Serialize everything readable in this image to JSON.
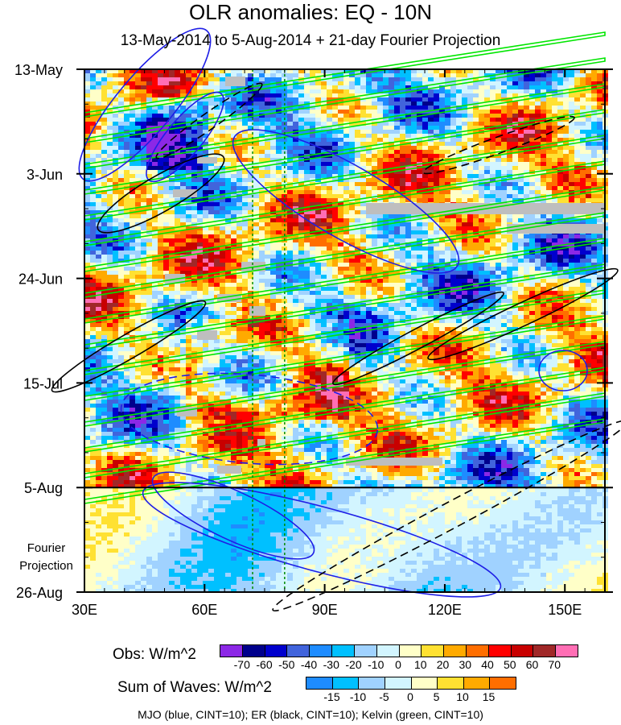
{
  "chart_data": {
    "type": "heatmap",
    "title": "OLR anomalies: EQ - 10N",
    "subtitle": "13-May-2014 to 5-Aug-2014 + 21-day Fourier Projection",
    "x_ticks": [
      "30E",
      "60E",
      "90E",
      "120E",
      "150E"
    ],
    "x_tick_values": [
      30,
      60,
      90,
      120,
      150
    ],
    "xlim": [
      30,
      160
    ],
    "y_ticks": [
      "13-May",
      "3-Jun",
      "24-Jun",
      "15-Jul",
      "5-Aug",
      "26-Aug"
    ],
    "y_tick_days": [
      0,
      21,
      42,
      63,
      84,
      105
    ],
    "ylim_days": [
      0,
      105
    ],
    "projection_label": [
      "Fourier",
      "Projection"
    ],
    "projection_start_day": 84,
    "reference_lines_lon": [
      72,
      80
    ],
    "obs_colorbar": {
      "label": "Obs: W/m^2",
      "levels": [
        -70,
        -60,
        -50,
        -40,
        -30,
        -20,
        -10,
        0,
        10,
        20,
        30,
        40,
        50,
        60,
        70
      ],
      "colors": [
        "#8c28e6",
        "#00008c",
        "#0000cd",
        "#4164dc",
        "#1e8cff",
        "#00c0ff",
        "#a0d2ff",
        "#d2f5ff",
        "#ffffc8",
        "#ffe132",
        "#ffaa00",
        "#ff6e00",
        "#ff0000",
        "#c80000",
        "#a02828",
        "#ff6eb4"
      ]
    },
    "waves_colorbar": {
      "label": "Sum of Waves: W/m^2",
      "levels": [
        -15,
        -10,
        -5,
        0,
        5,
        10,
        15
      ],
      "colors": [
        "#1e8cff",
        "#00c0ff",
        "#a0d2ff",
        "#d2f5ff",
        "#ffffc8",
        "#ffe132",
        "#ffaa00",
        "#ff6e00"
      ]
    },
    "contour_legend": "MJO (blue, CINT=10); ER (black, CINT=10); Kelvin (green, CINT=10)",
    "contour_colors": {
      "mjo": "#1e1ee6",
      "er": "#000000",
      "kelvin": "#00e600"
    }
  }
}
